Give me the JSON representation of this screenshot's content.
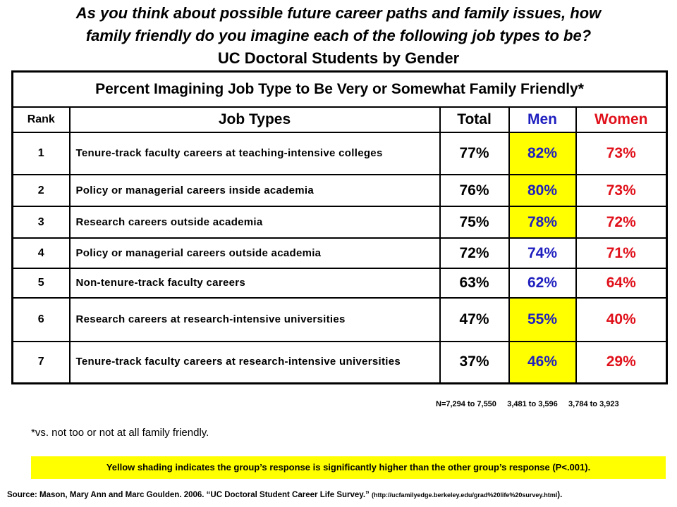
{
  "title": {
    "line1": "As you think about possible future career paths and family issues, how",
    "line2": "family friendly do you imagine each of the following job types to be?",
    "line3": "UC Doctoral Students by Gender"
  },
  "table": {
    "caption": "Percent Imagining Job Type to Be Very or Somewhat Family Friendly*",
    "headers": {
      "rank": "Rank",
      "job": "Job Types",
      "total": "Total",
      "men": "Men",
      "women": "Women"
    },
    "highlight_color": "#ffff00",
    "rows": [
      {
        "rank": "1",
        "job": "Tenure-track faculty careers at teaching-intensive colleges",
        "total": "77%",
        "men": "82%",
        "women": "73%",
        "men_shaded": true
      },
      {
        "rank": "2",
        "job": "Policy or managerial careers inside academia",
        "total": "76%",
        "men": "80%",
        "women": "73%",
        "men_shaded": true
      },
      {
        "rank": "3",
        "job": "Research careers outside academia",
        "total": "75%",
        "men": "78%",
        "women": "72%",
        "men_shaded": true
      },
      {
        "rank": "4",
        "job": "Policy or managerial careers outside academia",
        "total": "72%",
        "men": "74%",
        "women": "71%",
        "men_shaded": false
      },
      {
        "rank": "5",
        "job": "Non-tenure-track faculty careers",
        "total": "63%",
        "men": "62%",
        "women": "64%",
        "men_shaded": false
      },
      {
        "rank": "6",
        "job": "Research careers at research-intensive universities",
        "total": "47%",
        "men": "55%",
        "women": "40%",
        "men_shaded": true
      },
      {
        "rank": "7",
        "job": "Tenure-track faculty careers at research-intensive universities",
        "total": "37%",
        "men": "46%",
        "women": "29%",
        "men_shaded": true
      }
    ]
  },
  "sample_sizes": [
    "N=7,294 to 7,550",
    "3,481 to 3,596",
    "3,784 to 3,923"
  ],
  "footnote": "*vs. not too or not at all family friendly.",
  "shading_note": "Yellow shading indicates the group’s response is significantly higher than the other group’s response (P<.001).",
  "source": {
    "text": "Source: Mason, Mary Ann  and Marc Goulden.  2006. “UC Doctoral  Student Career Life Survey.” ",
    "url": "(http://ucfamilyedge.berkeley.edu/grad%20life%20survey.html",
    "end": ")."
  }
}
